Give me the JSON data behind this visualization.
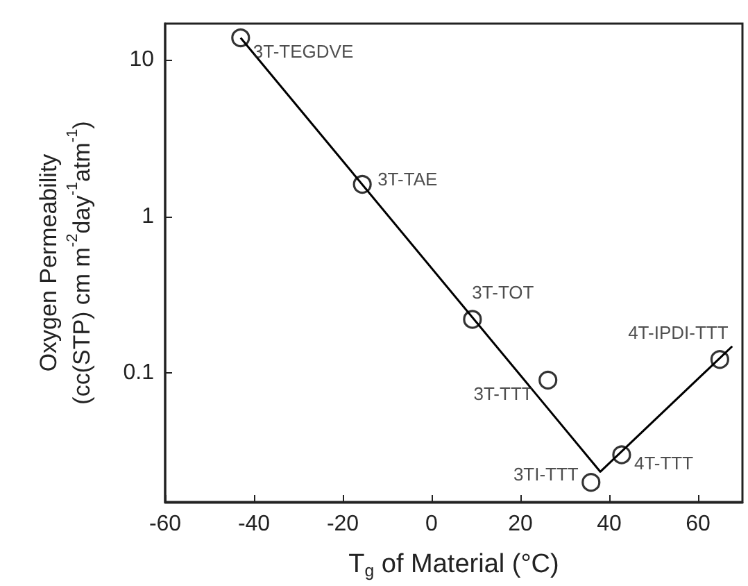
{
  "chart_data": {
    "type": "scatter",
    "xlabel": "T$_{g}$ of Material (°C)",
    "ylabel": "Oxygen Permeability\n(cc(STP) cm m$^{-2}$day$^{-1}$atm$^{-1}$)",
    "log": "y",
    "grid": false,
    "xlim": [
      -60,
      70
    ],
    "xticks": [
      -60,
      -40,
      -20,
      0,
      20,
      40,
      60
    ],
    "ylim": [
      0.015,
      17
    ],
    "yticks": [
      0.1,
      1,
      10
    ],
    "series": [
      {
        "type": "scatter",
        "marker": "circle",
        "color": "#000000",
        "x": [
          -43,
          -15.6,
          9.2,
          26.2,
          35.9,
          42.8,
          64.9
        ],
        "values": [
          13.8,
          1.6,
          0.22,
          0.09,
          0.02,
          0.03,
          0.122
        ]
      },
      {
        "type": "line",
        "marker": "none",
        "line_style": "solid",
        "color": "#000000",
        "x": [
          -43,
          38,
          67.7
        ],
        "values": [
          13.8,
          0.0234,
          0.148
        ]
      }
    ],
    "annotations": [
      {
        "text": "3T-TEGDVE",
        "x": -43,
        "y": 13.8
      },
      {
        "text": "3T-TAE",
        "x": -15.6,
        "y": 1.6
      },
      {
        "text": "3T-TOT",
        "x": 9.2,
        "y": 0.22
      },
      {
        "text": "3T-TTT",
        "x": 26.2,
        "y": 0.09
      },
      {
        "text": "3TI-TTT",
        "x": 35.9,
        "y": 0.02
      },
      {
        "text": "4T-TTT",
        "x": 42.8,
        "y": 0.03
      },
      {
        "text": "4T-IPDI-TTT",
        "x": 64.9,
        "y": 0.122
      }
    ]
  }
}
